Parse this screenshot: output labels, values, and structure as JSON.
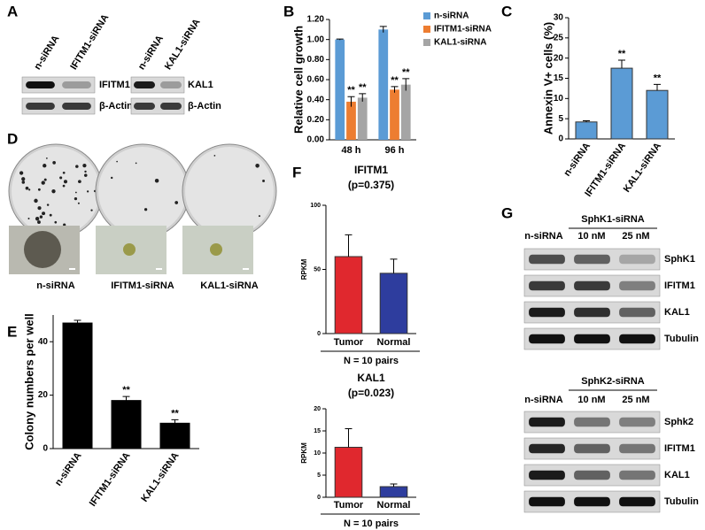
{
  "panel_labels": [
    "A",
    "B",
    "C",
    "D",
    "E",
    "F",
    "G"
  ],
  "blots_a": [
    {
      "lanes": [
        "n-siRNA",
        "IFITM1-siRNA"
      ],
      "rows": [
        "IFITM1",
        "β-Actin"
      ]
    },
    {
      "lanes": [
        "n-siRNA",
        "KAL1-siRNA"
      ],
      "rows": [
        "KAL1",
        "β-Actin"
      ]
    }
  ],
  "colony_images": {
    "labels": [
      "n-siRNA",
      "IFITM1-siRNA",
      "KAL1-siRNA"
    ]
  },
  "blots_g": [
    {
      "title": "SphK1-siRNA",
      "lanes": [
        "n-siRNA",
        "10 nM",
        "25 nM"
      ],
      "rows": [
        "SphK1",
        "IFITM1",
        "KAL1",
        "Tubulin"
      ]
    },
    {
      "title": "SphK2-siRNA",
      "lanes": [
        "n-siRNA",
        "10 nM",
        "25 nM"
      ],
      "rows": [
        "Sphk2",
        "IFITM1",
        "KAL1",
        "Tubulin"
      ]
    }
  ],
  "chart_data": [
    {
      "type": "bar",
      "y_label": "Relative cell growth",
      "categories": [
        "48 h",
        "96 h"
      ],
      "series": [
        {
          "name": "n-siRNA",
          "color": "#5b9bd5",
          "values": [
            1.0,
            1.1
          ],
          "errors": [
            0.005,
            0.03
          ]
        },
        {
          "name": "IFITM1-siRNA",
          "color": "#ed7d31",
          "values": [
            0.38,
            0.5
          ],
          "errors": [
            0.05,
            0.03
          ],
          "sig": [
            "**",
            "**"
          ]
        },
        {
          "name": "KAL1-siRNA",
          "color": "#a5a5a5",
          "values": [
            0.42,
            0.55
          ],
          "errors": [
            0.04,
            0.06
          ],
          "sig": [
            "**",
            "**"
          ]
        }
      ],
      "ylim": [
        0,
        1.2
      ],
      "yticks": [
        {
          "value": 0,
          "label": "0.00"
        },
        {
          "value": 0.2,
          "label": "0.20"
        },
        {
          "value": 0.4,
          "label": "0.40"
        },
        {
          "value": 0.6,
          "label": "0.60"
        },
        {
          "value": 0.8,
          "label": "0.80"
        },
        {
          "value": 1.0,
          "label": "1.00"
        },
        {
          "value": 1.2,
          "label": "1.20"
        }
      ],
      "legend": "top-right"
    },
    {
      "type": "bar",
      "y_label": "Annexin V+ cells (%)",
      "categories": [
        "n-siRNA",
        "IFITM1-siRNA",
        "KAL1-siRNA"
      ],
      "values": [
        4.2,
        17.5,
        12
      ],
      "errors": [
        0.3,
        2,
        1.5
      ],
      "sig": [
        null,
        "**",
        "**"
      ],
      "color": "#5b9bd5",
      "ylim": [
        0,
        30
      ],
      "yticks": [
        0,
        5,
        10,
        15,
        20,
        25,
        30
      ]
    },
    {
      "type": "bar",
      "y_label": "Colony numbers per well",
      "categories": [
        "n-siRNA",
        "IFITM1-siRNA",
        "KAL1-siRNA"
      ],
      "values": [
        47,
        18,
        9.5
      ],
      "errors": [
        1,
        1.5,
        1.3
      ],
      "sig": [
        null,
        "**",
        "**"
      ],
      "color": "#000000",
      "ylim": [
        0,
        50
      ],
      "yticks": [
        0,
        20,
        40
      ]
    },
    {
      "type": "bar",
      "title": "IFITM1",
      "subtitle": "(p=0.375)",
      "y_label": "RPKM",
      "categories": [
        "Tumor",
        "Normal"
      ],
      "values": [
        60,
        47
      ],
      "errors": [
        17,
        11
      ],
      "colors": [
        "#e0282e",
        "#2e3d9e"
      ],
      "ylim": [
        0,
        100
      ],
      "yticks": [
        0,
        50,
        100
      ],
      "note": "N = 10 pairs"
    },
    {
      "type": "bar",
      "title": "KAL1",
      "subtitle": "(p=0.023)",
      "y_label": "RPKM",
      "categories": [
        "Tumor",
        "Normal"
      ],
      "values": [
        11.3,
        2.4
      ],
      "errors": [
        4.2,
        0.6
      ],
      "colors": [
        "#e0282e",
        "#2e3d9e"
      ],
      "ylim": [
        0,
        20
      ],
      "yticks": [
        0,
        5,
        10,
        15,
        20
      ],
      "note": "N = 10 pairs"
    }
  ]
}
